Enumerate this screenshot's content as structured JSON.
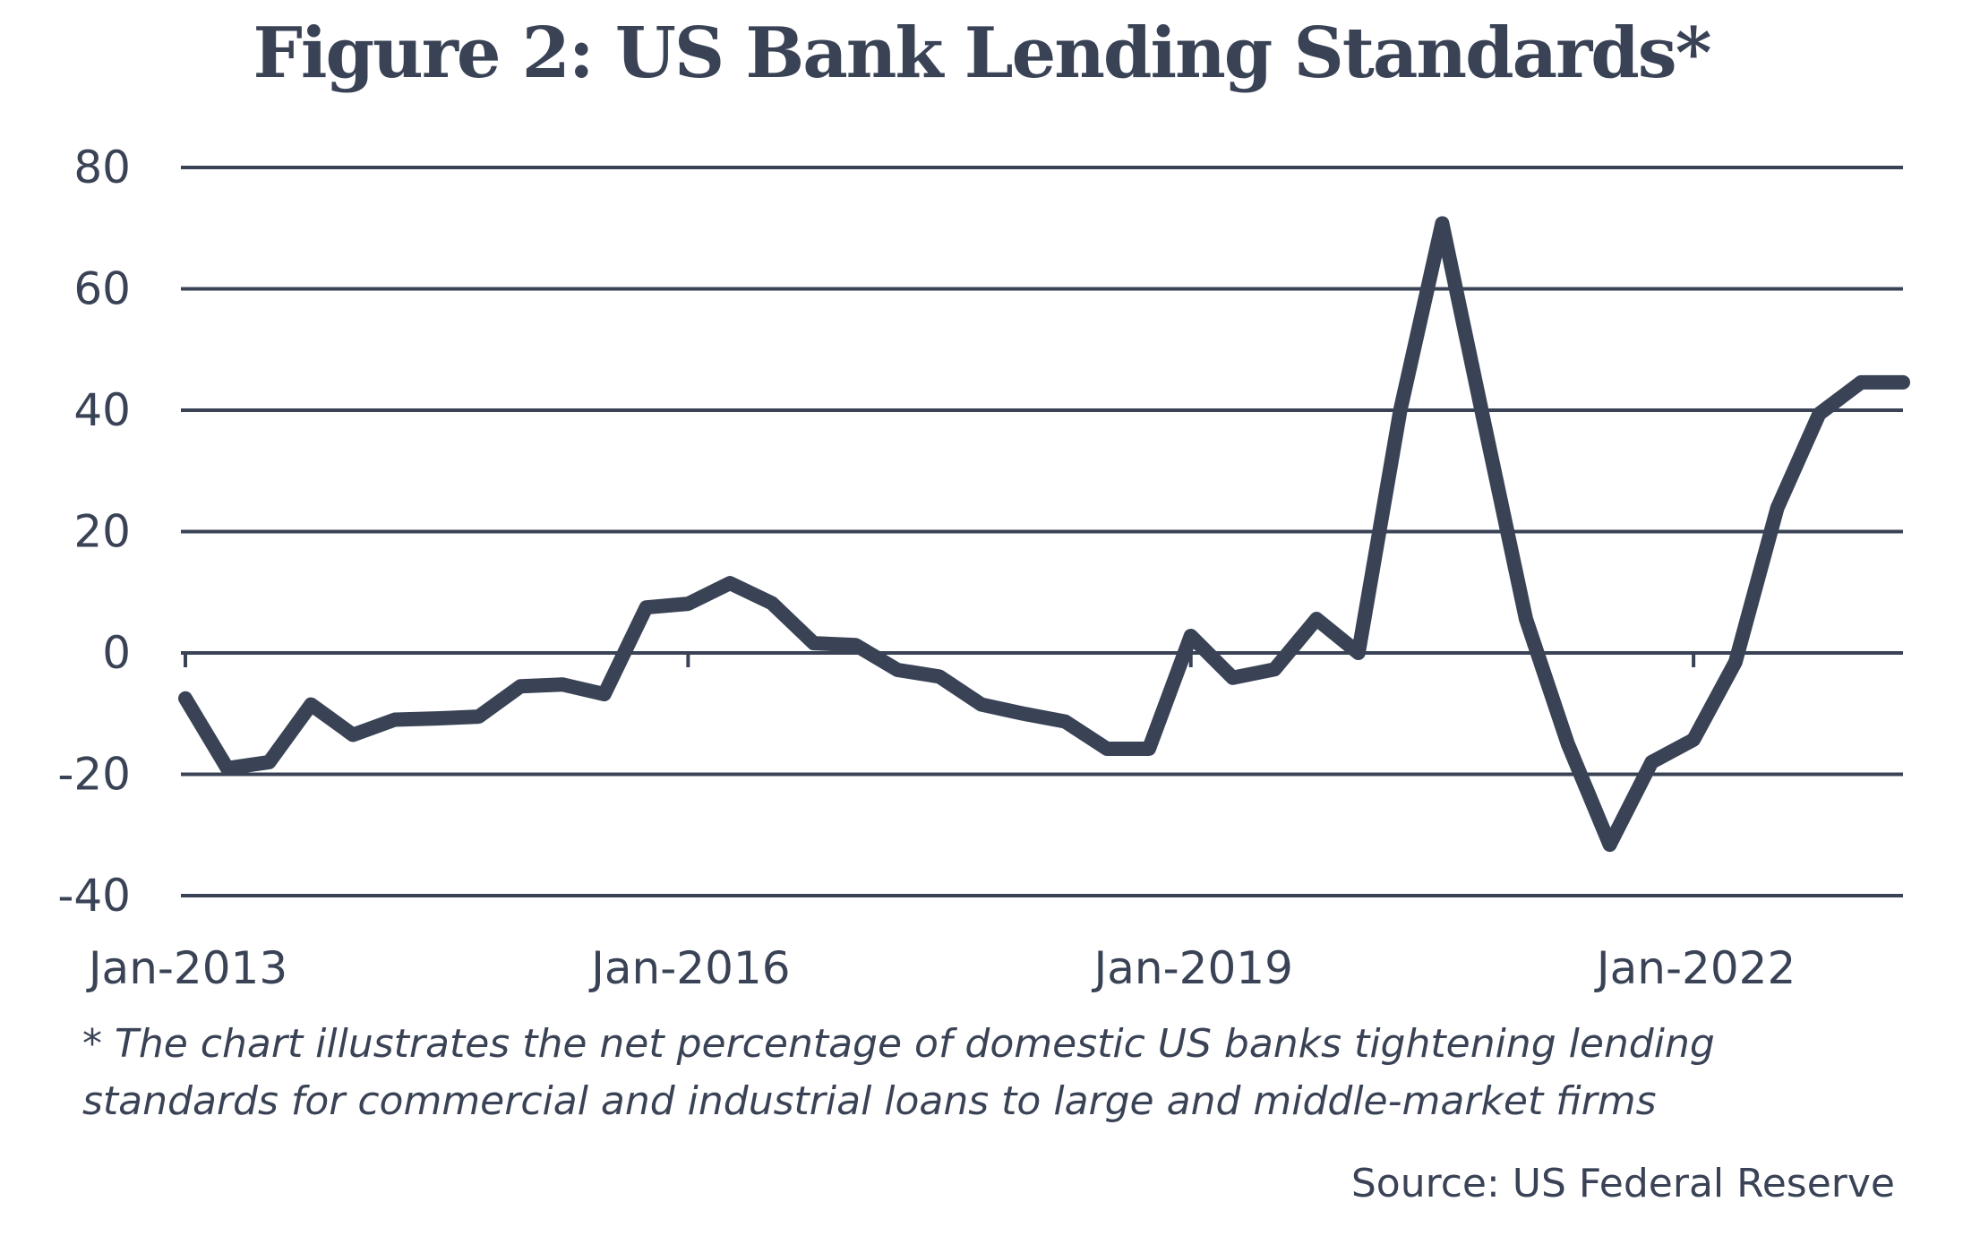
{
  "chart_data": {
    "type": "line",
    "title": "Figure 2: US Bank Lending Standards*",
    "xlabel": "",
    "ylabel": "",
    "ylim": [
      -40,
      80
    ],
    "yticks": [
      80,
      60,
      40,
      20,
      0,
      -20,
      -40
    ],
    "ytick_labels": [
      "80",
      "60",
      "40",
      "20",
      "0",
      "-20",
      "-40"
    ],
    "xlim": [
      0,
      41
    ],
    "xticks": [
      0,
      12,
      24,
      36
    ],
    "xtick_labels": [
      "Jan-2013",
      "Jan-2016",
      "Jan-2019",
      "Jan-2022"
    ],
    "grid": true,
    "series": [
      {
        "name": "Net percentage of domestic US banks tightening lending standards",
        "x": [
          0,
          1,
          2,
          3,
          4,
          5,
          6,
          7,
          8,
          9,
          10,
          11,
          12,
          13,
          14,
          15,
          16,
          17,
          18,
          19,
          20,
          21,
          22,
          23,
          24,
          25,
          26,
          27,
          28,
          29,
          30,
          31,
          32,
          33,
          34,
          35,
          36,
          37,
          38,
          39,
          40,
          41
        ],
        "values": [
          -7.5,
          -19,
          -18,
          -8.5,
          -13.5,
          -11,
          -10.8,
          -10.5,
          -5.5,
          -5.2,
          -6.8,
          7.5,
          8.1,
          11.5,
          8.2,
          1.6,
          1.3,
          -2.8,
          -3.9,
          -8.5,
          -10,
          -11.3,
          -15.8,
          -15.8,
          2.8,
          -4.1,
          -2.7,
          5.6,
          0,
          40,
          70.8,
          38,
          5.6,
          -15,
          -31.6,
          -18,
          -14.3,
          -1.5,
          23.9,
          39.4,
          44.6,
          44.6
        ]
      }
    ],
    "color": "#3a4356"
  },
  "footnote": {
    "line1": "* The chart illustrates the net percentage of domestic US banks tightening lending",
    "line2": "standards for commercial and industrial loans to large and middle-market firms"
  },
  "source": "Source: US Federal Reserve"
}
